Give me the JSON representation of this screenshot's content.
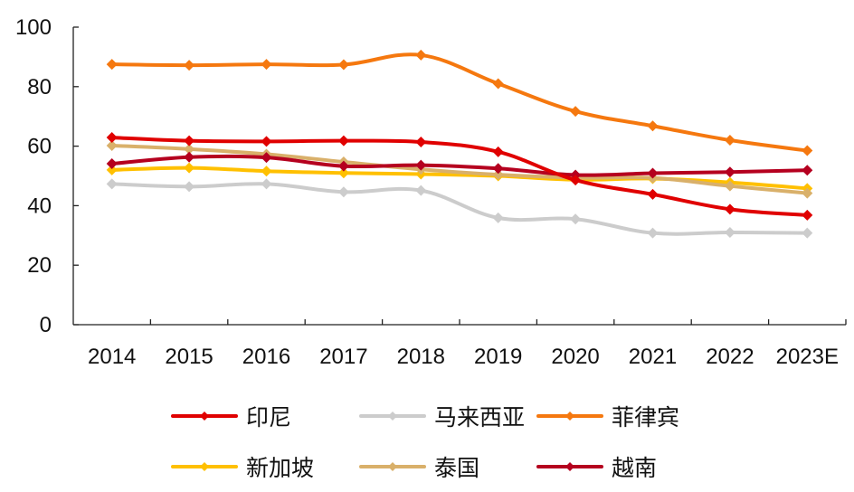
{
  "chart_data": {
    "type": "line",
    "title": "",
    "xlabel": "",
    "ylabel": "",
    "categories": [
      "2014",
      "2015",
      "2016",
      "2017",
      "2018",
      "2019",
      "2020",
      "2021",
      "2022",
      "2023E"
    ],
    "ylim": [
      0,
      100
    ],
    "yticks": [
      0,
      20,
      40,
      60,
      80,
      100
    ],
    "grid": false,
    "legend_position": "bottom",
    "series": [
      {
        "name": "印尼",
        "color": "#e00000",
        "values": [
          62.9,
          61.8,
          61.6,
          61.8,
          61.4,
          58.1,
          48.6,
          43.8,
          38.8,
          36.8
        ]
      },
      {
        "name": "马来西亚",
        "color": "#cccccc",
        "values": [
          47.3,
          46.4,
          47.3,
          44.6,
          45.1,
          35.9,
          35.5,
          30.8,
          31.0,
          30.8
        ]
      },
      {
        "name": "菲律宾",
        "color": "#f5780f",
        "values": [
          87.5,
          87.2,
          87.5,
          87.4,
          90.6,
          81.0,
          71.7,
          66.8,
          62.0,
          58.5
        ]
      },
      {
        "name": "新加坡",
        "color": "#ffc000",
        "values": [
          52.0,
          52.7,
          51.6,
          51.0,
          50.6,
          50.0,
          48.7,
          49.1,
          47.8,
          45.8
        ]
      },
      {
        "name": "泰国",
        "color": "#d9b06a",
        "values": [
          60.2,
          59.0,
          57.3,
          54.7,
          52.2,
          50.4,
          49.4,
          49.3,
          46.6,
          44.2
        ]
      },
      {
        "name": "越南",
        "color": "#b5001f",
        "values": [
          54.1,
          56.3,
          56.2,
          53.3,
          53.6,
          52.5,
          50.3,
          50.9,
          51.3,
          51.9
        ]
      }
    ]
  }
}
